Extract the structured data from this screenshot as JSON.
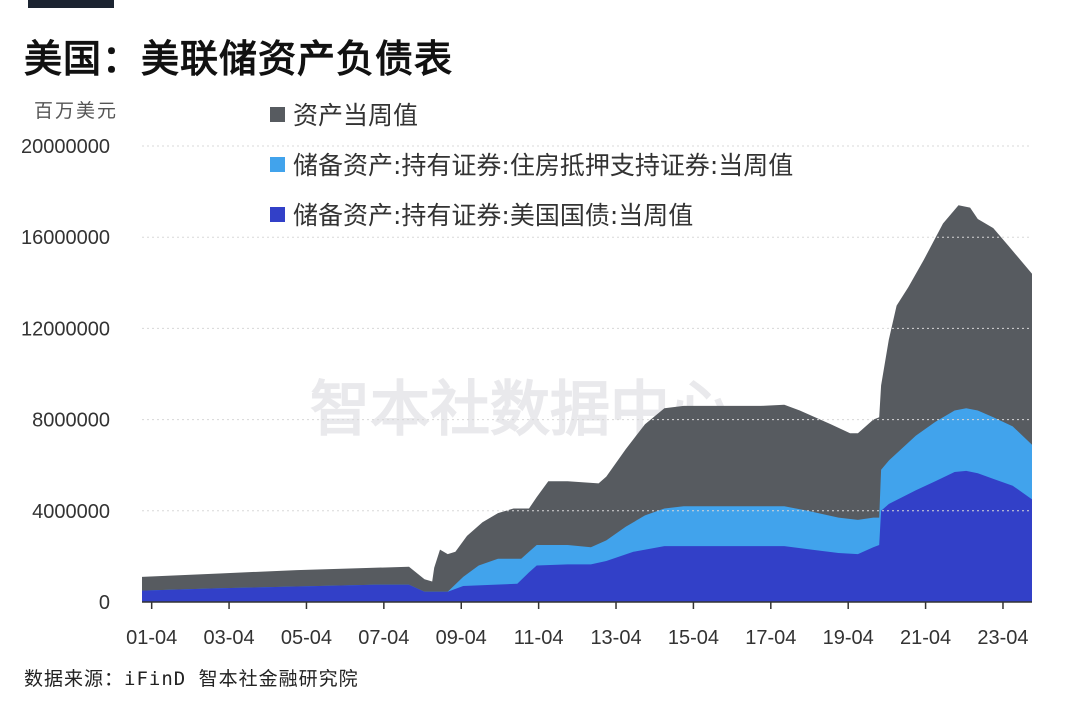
{
  "header": {
    "title": "美国：美联储资产负债表",
    "unit": "百万美元"
  },
  "watermark": "智本社数据中心",
  "source": "数据来源：iFinD 智本社金融研究院",
  "colors": {
    "total": "#575b60",
    "mbs": "#41a3ec",
    "treasury": "#3240c8",
    "topbar": "#1c2431"
  },
  "chart_data": {
    "type": "area",
    "stacking": "overlapping",
    "x_tick_labels": [
      "01-04",
      "03-04",
      "05-04",
      "07-04",
      "09-04",
      "11-04",
      "13-04",
      "15-04",
      "17-04",
      "19-04",
      "21-04",
      "23-04"
    ],
    "y_tick_labels": [
      "0",
      "4000000",
      "8000000",
      "12000000",
      "16000000",
      "20000000"
    ],
    "ylim": [
      0,
      20000000
    ],
    "xlim": [
      2001.0,
      2024.0
    ],
    "legend_position": "top-left",
    "series": [
      {
        "name": "资产当周值",
        "color_key": "total",
        "points": [
          [
            2001.0,
            1100000
          ],
          [
            2003.0,
            1250000
          ],
          [
            2005.0,
            1400000
          ],
          [
            2007.0,
            1500000
          ],
          [
            2007.9,
            1550000
          ],
          [
            2008.3,
            1000000
          ],
          [
            2008.5,
            900000
          ],
          [
            2008.55,
            1500000
          ],
          [
            2008.7,
            2300000
          ],
          [
            2008.9,
            2100000
          ],
          [
            2009.1,
            2200000
          ],
          [
            2009.4,
            2900000
          ],
          [
            2009.8,
            3500000
          ],
          [
            2010.2,
            3900000
          ],
          [
            2010.6,
            4100000
          ],
          [
            2011.0,
            4100000
          ],
          [
            2011.2,
            4600000
          ],
          [
            2011.5,
            5300000
          ],
          [
            2012.0,
            5300000
          ],
          [
            2012.8,
            5200000
          ],
          [
            2013.0,
            5500000
          ],
          [
            2013.5,
            6700000
          ],
          [
            2014.0,
            7800000
          ],
          [
            2014.5,
            8500000
          ],
          [
            2015.0,
            8600000
          ],
          [
            2016.0,
            8600000
          ],
          [
            2017.0,
            8600000
          ],
          [
            2017.6,
            8650000
          ],
          [
            2018.0,
            8400000
          ],
          [
            2018.8,
            7800000
          ],
          [
            2019.3,
            7400000
          ],
          [
            2019.5,
            7400000
          ],
          [
            2019.9,
            8000000
          ],
          [
            2020.05,
            8100000
          ],
          [
            2020.1,
            9500000
          ],
          [
            2020.3,
            11500000
          ],
          [
            2020.5,
            13000000
          ],
          [
            2020.8,
            13800000
          ],
          [
            2021.2,
            15000000
          ],
          [
            2021.7,
            16600000
          ],
          [
            2022.1,
            17400000
          ],
          [
            2022.4,
            17300000
          ],
          [
            2022.6,
            16800000
          ],
          [
            2023.0,
            16400000
          ],
          [
            2023.4,
            15600000
          ],
          [
            2024.0,
            14400000
          ]
        ]
      },
      {
        "name": "储备资产:持有证券:住房抵押支持证券:当周值",
        "color_key": "mbs",
        "points": [
          [
            2001.0,
            500000
          ],
          [
            2003.0,
            600000
          ],
          [
            2005.0,
            680000
          ],
          [
            2007.0,
            760000
          ],
          [
            2007.9,
            760000
          ],
          [
            2008.3,
            450000
          ],
          [
            2008.9,
            450000
          ],
          [
            2009.3,
            1100000
          ],
          [
            2009.7,
            1600000
          ],
          [
            2010.2,
            1900000
          ],
          [
            2010.8,
            1900000
          ],
          [
            2011.0,
            2200000
          ],
          [
            2011.2,
            2500000
          ],
          [
            2012.0,
            2500000
          ],
          [
            2012.6,
            2400000
          ],
          [
            2013.0,
            2700000
          ],
          [
            2013.5,
            3300000
          ],
          [
            2014.0,
            3800000
          ],
          [
            2014.5,
            4100000
          ],
          [
            2015.0,
            4200000
          ],
          [
            2016.0,
            4200000
          ],
          [
            2017.0,
            4200000
          ],
          [
            2017.6,
            4200000
          ],
          [
            2018.2,
            4000000
          ],
          [
            2019.0,
            3700000
          ],
          [
            2019.5,
            3600000
          ],
          [
            2019.9,
            3700000
          ],
          [
            2020.05,
            3700000
          ],
          [
            2020.1,
            5800000
          ],
          [
            2020.3,
            6200000
          ],
          [
            2021.0,
            7300000
          ],
          [
            2021.5,
            7900000
          ],
          [
            2022.0,
            8400000
          ],
          [
            2022.3,
            8500000
          ],
          [
            2022.6,
            8400000
          ],
          [
            2023.0,
            8100000
          ],
          [
            2023.5,
            7700000
          ],
          [
            2024.0,
            6900000
          ]
        ]
      },
      {
        "name": "储备资产:持有证券:美国国债:当周值",
        "color_key": "treasury",
        "points": [
          [
            2001.0,
            500000
          ],
          [
            2003.0,
            600000
          ],
          [
            2005.0,
            680000
          ],
          [
            2007.0,
            760000
          ],
          [
            2007.9,
            760000
          ],
          [
            2008.3,
            450000
          ],
          [
            2008.9,
            450000
          ],
          [
            2009.3,
            700000
          ],
          [
            2010.0,
            750000
          ],
          [
            2010.7,
            800000
          ],
          [
            2011.0,
            1300000
          ],
          [
            2011.2,
            1600000
          ],
          [
            2012.0,
            1650000
          ],
          [
            2012.6,
            1650000
          ],
          [
            2013.0,
            1800000
          ],
          [
            2013.7,
            2200000
          ],
          [
            2014.5,
            2450000
          ],
          [
            2015.0,
            2450000
          ],
          [
            2016.0,
            2450000
          ],
          [
            2017.0,
            2450000
          ],
          [
            2017.6,
            2450000
          ],
          [
            2018.3,
            2300000
          ],
          [
            2019.0,
            2150000
          ],
          [
            2019.5,
            2100000
          ],
          [
            2019.9,
            2400000
          ],
          [
            2020.05,
            2500000
          ],
          [
            2020.1,
            4000000
          ],
          [
            2020.3,
            4300000
          ],
          [
            2021.0,
            4900000
          ],
          [
            2021.5,
            5300000
          ],
          [
            2022.0,
            5700000
          ],
          [
            2022.3,
            5750000
          ],
          [
            2022.6,
            5650000
          ],
          [
            2023.0,
            5400000
          ],
          [
            2023.5,
            5100000
          ],
          [
            2024.0,
            4500000
          ]
        ]
      }
    ]
  }
}
